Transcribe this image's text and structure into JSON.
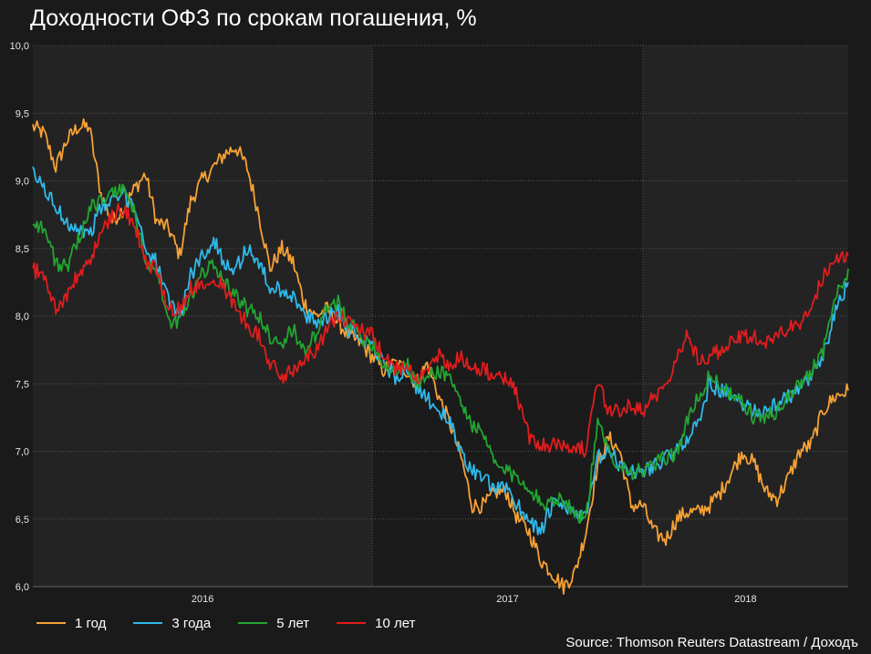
{
  "title": "Доходности ОФЗ по срокам погашения, %",
  "source": "Source: Thomson Reuters Datastream / Доходъ",
  "chart_data": {
    "type": "line",
    "title": "Доходности ОФЗ по срокам погашения, %",
    "xlabel": "",
    "ylabel": "",
    "ylim": [
      6.0,
      10.0
    ],
    "y_ticks": [
      "10,0",
      "9,5",
      "9,0",
      "8,5",
      "8,0",
      "7,5",
      "7,0",
      "6,5",
      "6,0"
    ],
    "x_range": [
      "2015-10-01",
      "2018-10-05"
    ],
    "x_tick_labels": [
      "2016",
      "2017",
      "2018"
    ],
    "grid": true,
    "legend_position": "bottom-left",
    "series": [
      {
        "name": "1 год",
        "color": "#f7a135",
        "x": [
          "2015-10-01",
          "2015-10-16",
          "2015-11-01",
          "2015-11-16",
          "2015-12-01",
          "2015-12-16",
          "2016-01-01",
          "2016-01-16",
          "2016-02-01",
          "2016-02-16",
          "2016-03-01",
          "2016-03-16",
          "2016-04-01",
          "2016-04-16",
          "2016-05-01",
          "2016-05-16",
          "2016-06-01",
          "2016-06-16",
          "2016-07-01",
          "2016-07-16",
          "2016-08-01",
          "2016-08-16",
          "2016-09-01",
          "2016-09-16",
          "2016-10-01",
          "2016-10-16",
          "2016-11-01",
          "2016-11-16",
          "2016-12-01",
          "2016-12-16",
          "2017-01-01",
          "2017-01-16",
          "2017-02-01",
          "2017-02-16",
          "2017-03-01",
          "2017-03-16",
          "2017-04-01",
          "2017-04-16",
          "2017-05-01",
          "2017-05-16",
          "2017-06-01",
          "2017-06-16",
          "2017-07-01",
          "2017-07-16",
          "2017-08-01",
          "2017-08-16",
          "2017-09-01",
          "2017-09-16",
          "2017-10-01",
          "2017-10-16",
          "2017-11-01",
          "2017-11-16",
          "2017-12-01",
          "2017-12-16",
          "2018-01-01",
          "2018-01-16",
          "2018-02-01",
          "2018-02-16",
          "2018-03-01",
          "2018-03-16",
          "2018-04-01",
          "2018-04-16",
          "2018-05-01",
          "2018-05-16",
          "2018-06-01",
          "2018-06-16",
          "2018-07-01",
          "2018-07-16",
          "2018-08-01",
          "2018-08-16",
          "2018-09-01",
          "2018-09-16",
          "2018-10-05"
        ],
        "values": [
          9.4,
          9.35,
          9.1,
          9.3,
          9.4,
          9.4,
          8.9,
          8.7,
          8.8,
          8.95,
          9.05,
          8.7,
          8.65,
          8.45,
          8.85,
          9.0,
          9.1,
          9.2,
          9.25,
          9.1,
          8.75,
          8.35,
          8.5,
          8.4,
          8.1,
          8.0,
          8.05,
          7.95,
          7.85,
          7.8,
          7.7,
          7.6,
          7.65,
          7.6,
          7.5,
          7.65,
          7.4,
          7.2,
          6.95,
          6.6,
          6.6,
          6.7,
          6.7,
          6.5,
          6.4,
          6.2,
          6.1,
          6.0,
          6.1,
          6.4,
          6.9,
          7.1,
          7.0,
          6.6,
          6.6,
          6.4,
          6.35,
          6.5,
          6.55,
          6.55,
          6.6,
          6.7,
          6.85,
          7.0,
          6.9,
          6.7,
          6.65,
          6.8,
          7.0,
          7.05,
          7.3,
          7.4,
          7.45
        ]
      },
      {
        "name": "3 года",
        "color": "#2fb9ea",
        "x": [
          "2015-10-01",
          "2015-10-16",
          "2015-11-01",
          "2015-11-16",
          "2015-12-01",
          "2015-12-16",
          "2016-01-01",
          "2016-01-16",
          "2016-02-01",
          "2016-02-16",
          "2016-03-01",
          "2016-03-16",
          "2016-04-01",
          "2016-04-16",
          "2016-05-01",
          "2016-05-16",
          "2016-06-01",
          "2016-06-16",
          "2016-07-01",
          "2016-07-16",
          "2016-08-01",
          "2016-08-16",
          "2016-09-01",
          "2016-09-16",
          "2016-10-01",
          "2016-10-16",
          "2016-11-01",
          "2016-11-16",
          "2016-12-01",
          "2016-12-16",
          "2017-01-01",
          "2017-01-16",
          "2017-02-01",
          "2017-02-16",
          "2017-03-01",
          "2017-03-16",
          "2017-04-01",
          "2017-04-16",
          "2017-05-01",
          "2017-05-16",
          "2017-06-01",
          "2017-06-16",
          "2017-07-01",
          "2017-07-16",
          "2017-08-01",
          "2017-08-16",
          "2017-09-01",
          "2017-09-16",
          "2017-10-01",
          "2017-10-16",
          "2017-11-01",
          "2017-11-16",
          "2017-12-01",
          "2017-12-16",
          "2018-01-01",
          "2018-01-16",
          "2018-02-01",
          "2018-02-16",
          "2018-03-01",
          "2018-03-16",
          "2018-04-01",
          "2018-04-16",
          "2018-05-01",
          "2018-05-16",
          "2018-06-01",
          "2018-06-16",
          "2018-07-01",
          "2018-07-16",
          "2018-08-01",
          "2018-08-16",
          "2018-09-01",
          "2018-09-16",
          "2018-10-05"
        ],
        "values": [
          9.05,
          8.95,
          8.8,
          8.7,
          8.65,
          8.6,
          8.8,
          8.85,
          8.9,
          8.8,
          8.5,
          8.4,
          8.1,
          8.0,
          8.3,
          8.45,
          8.55,
          8.4,
          8.35,
          8.5,
          8.4,
          8.2,
          8.2,
          8.15,
          8.0,
          7.95,
          8.0,
          8.05,
          7.9,
          7.85,
          7.8,
          7.65,
          7.55,
          7.6,
          7.45,
          7.4,
          7.3,
          7.2,
          7.0,
          6.85,
          6.8,
          6.7,
          6.75,
          6.6,
          6.5,
          6.4,
          6.6,
          6.6,
          6.55,
          6.5,
          6.95,
          7.0,
          6.9,
          6.85,
          6.85,
          6.9,
          6.95,
          7.0,
          7.1,
          7.2,
          7.5,
          7.45,
          7.4,
          7.35,
          7.3,
          7.3,
          7.35,
          7.4,
          7.45,
          7.55,
          7.7,
          8.0,
          8.25
        ]
      },
      {
        "name": "5 лет",
        "color": "#22a630",
        "x": [
          "2015-10-01",
          "2015-10-16",
          "2015-11-01",
          "2015-11-16",
          "2015-12-01",
          "2015-12-16",
          "2016-01-01",
          "2016-01-16",
          "2016-02-01",
          "2016-02-16",
          "2016-03-01",
          "2016-03-16",
          "2016-04-01",
          "2016-04-16",
          "2016-05-01",
          "2016-05-16",
          "2016-06-01",
          "2016-06-16",
          "2016-07-01",
          "2016-07-16",
          "2016-08-01",
          "2016-08-16",
          "2016-09-01",
          "2016-09-16",
          "2016-10-01",
          "2016-10-16",
          "2016-11-01",
          "2016-11-16",
          "2016-12-01",
          "2016-12-16",
          "2017-01-01",
          "2017-01-16",
          "2017-02-01",
          "2017-02-16",
          "2017-03-01",
          "2017-03-16",
          "2017-04-01",
          "2017-04-16",
          "2017-05-01",
          "2017-05-16",
          "2017-06-01",
          "2017-06-16",
          "2017-07-01",
          "2017-07-16",
          "2017-08-01",
          "2017-08-16",
          "2017-09-01",
          "2017-09-16",
          "2017-10-01",
          "2017-10-16",
          "2017-11-01",
          "2017-11-16",
          "2017-12-01",
          "2017-12-16",
          "2018-01-01",
          "2018-01-16",
          "2018-02-01",
          "2018-02-16",
          "2018-03-01",
          "2018-03-16",
          "2018-04-01",
          "2018-04-16",
          "2018-05-01",
          "2018-05-16",
          "2018-06-01",
          "2018-06-16",
          "2018-07-01",
          "2018-07-16",
          "2018-08-01",
          "2018-08-16",
          "2018-09-01",
          "2018-09-16",
          "2018-10-05"
        ],
        "values": [
          8.7,
          8.65,
          8.4,
          8.35,
          8.55,
          8.8,
          8.85,
          8.9,
          8.95,
          8.75,
          8.4,
          8.35,
          7.95,
          7.95,
          8.15,
          8.3,
          8.4,
          8.25,
          8.15,
          8.05,
          8.0,
          7.85,
          7.8,
          7.9,
          7.75,
          7.85,
          8.05,
          8.1,
          7.95,
          7.85,
          7.8,
          7.65,
          7.6,
          7.65,
          7.5,
          7.55,
          7.6,
          7.55,
          7.35,
          7.2,
          7.1,
          6.9,
          6.85,
          6.8,
          6.75,
          6.6,
          6.65,
          6.65,
          6.55,
          6.5,
          7.2,
          7.0,
          6.9,
          6.85,
          6.85,
          6.9,
          6.95,
          7.0,
          7.2,
          7.4,
          7.55,
          7.5,
          7.4,
          7.35,
          7.25,
          7.25,
          7.3,
          7.4,
          7.5,
          7.6,
          7.75,
          8.1,
          8.35
        ]
      },
      {
        "name": "10 лет",
        "color": "#e11d1d",
        "x": [
          "2015-10-01",
          "2015-10-16",
          "2015-11-01",
          "2015-11-16",
          "2015-12-01",
          "2015-12-16",
          "2016-01-01",
          "2016-01-16",
          "2016-02-01",
          "2016-02-16",
          "2016-03-01",
          "2016-03-16",
          "2016-04-01",
          "2016-04-16",
          "2016-05-01",
          "2016-05-16",
          "2016-06-01",
          "2016-06-16",
          "2016-07-01",
          "2016-07-16",
          "2016-08-01",
          "2016-08-16",
          "2016-09-01",
          "2016-09-16",
          "2016-10-01",
          "2016-10-16",
          "2016-11-01",
          "2016-11-16",
          "2016-12-01",
          "2016-12-16",
          "2017-01-01",
          "2017-01-16",
          "2017-02-01",
          "2017-02-16",
          "2017-03-01",
          "2017-03-16",
          "2017-04-01",
          "2017-04-16",
          "2017-05-01",
          "2017-05-16",
          "2017-06-01",
          "2017-06-16",
          "2017-07-01",
          "2017-07-16",
          "2017-08-01",
          "2017-08-16",
          "2017-09-01",
          "2017-09-16",
          "2017-10-01",
          "2017-10-16",
          "2017-11-01",
          "2017-11-16",
          "2017-12-01",
          "2017-12-16",
          "2018-01-01",
          "2018-01-16",
          "2018-02-01",
          "2018-02-16",
          "2018-03-01",
          "2018-03-16",
          "2018-04-01",
          "2018-04-16",
          "2018-05-01",
          "2018-05-16",
          "2018-06-01",
          "2018-06-16",
          "2018-07-01",
          "2018-07-16",
          "2018-08-01",
          "2018-08-16",
          "2018-09-01",
          "2018-09-16",
          "2018-10-05"
        ],
        "values": [
          8.35,
          8.3,
          8.05,
          8.15,
          8.3,
          8.4,
          8.6,
          8.75,
          8.8,
          8.65,
          8.4,
          8.35,
          8.05,
          8.05,
          8.2,
          8.25,
          8.3,
          8.2,
          8.05,
          7.95,
          7.85,
          7.65,
          7.55,
          7.6,
          7.7,
          7.75,
          7.9,
          8.0,
          7.95,
          7.9,
          7.85,
          7.7,
          7.6,
          7.65,
          7.55,
          7.6,
          7.7,
          7.65,
          7.7,
          7.6,
          7.6,
          7.55,
          7.55,
          7.4,
          7.1,
          7.05,
          7.05,
          7.05,
          7.05,
          7.0,
          7.5,
          7.3,
          7.3,
          7.35,
          7.3,
          7.4,
          7.5,
          7.7,
          7.85,
          7.7,
          7.7,
          7.75,
          7.8,
          7.85,
          7.85,
          7.8,
          7.85,
          7.9,
          7.95,
          8.05,
          8.3,
          8.4,
          8.45
        ]
      }
    ]
  }
}
